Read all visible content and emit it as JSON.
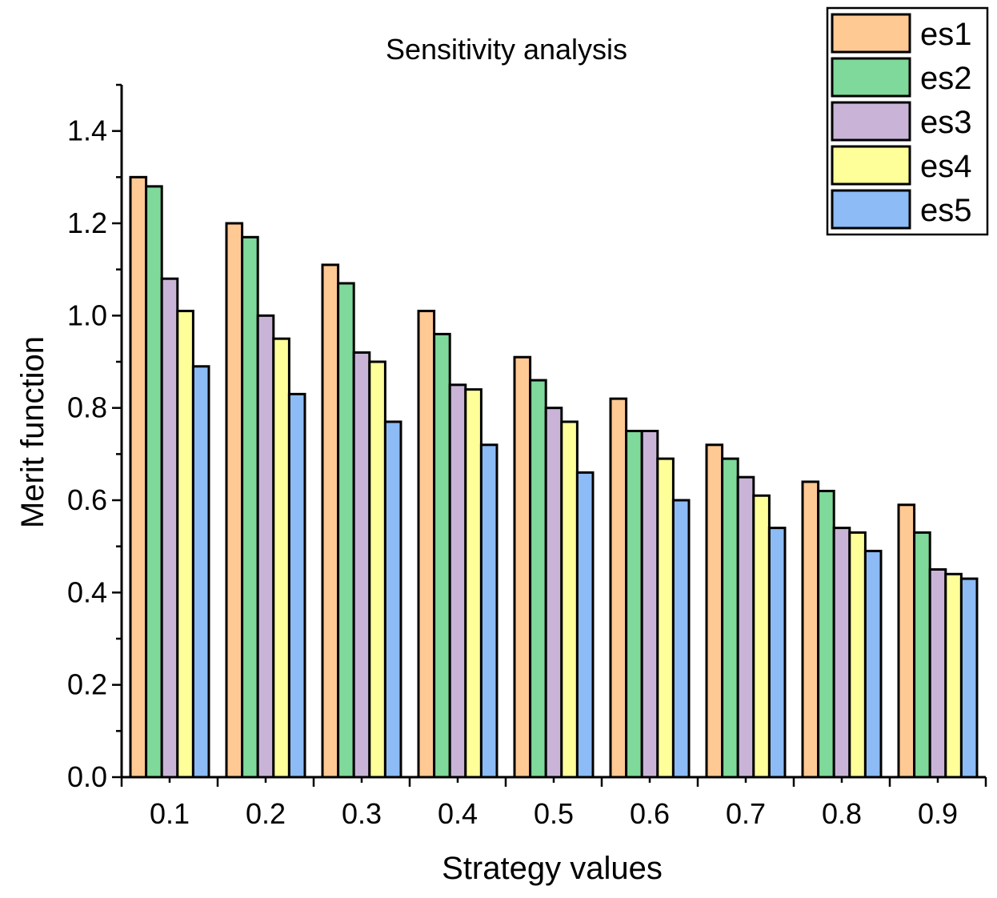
{
  "chart_data": {
    "type": "bar",
    "title": "Sensitivity analysis",
    "xlabel": "Strategy values",
    "ylabel": "Merit function",
    "categories": [
      "0.1",
      "0.2",
      "0.3",
      "0.4",
      "0.5",
      "0.6",
      "0.7",
      "0.8",
      "0.9"
    ],
    "ylim": [
      0,
      1.5
    ],
    "yticks": [
      "0.0",
      "0.2",
      "0.4",
      "0.6",
      "0.8",
      "1.0",
      "1.2",
      "1.4"
    ],
    "grid": false,
    "legend_position": "top-right",
    "series": [
      {
        "name": "es1",
        "color": "#FFC994",
        "values": [
          1.3,
          1.2,
          1.11,
          1.01,
          0.91,
          0.82,
          0.72,
          0.64,
          0.59
        ]
      },
      {
        "name": "es2",
        "color": "#7FD99A",
        "values": [
          1.28,
          1.17,
          1.07,
          0.96,
          0.86,
          0.75,
          0.69,
          0.62,
          0.53
        ]
      },
      {
        "name": "es3",
        "color": "#C9B4D8",
        "values": [
          1.08,
          1.0,
          0.92,
          0.85,
          0.8,
          0.75,
          0.65,
          0.54,
          0.45
        ]
      },
      {
        "name": "es4",
        "color": "#FFFF99",
        "values": [
          1.01,
          0.95,
          0.9,
          0.84,
          0.77,
          0.69,
          0.61,
          0.53,
          0.44
        ]
      },
      {
        "name": "es5",
        "color": "#8CBBF5",
        "values": [
          0.89,
          0.83,
          0.77,
          0.72,
          0.66,
          0.6,
          0.54,
          0.49,
          0.43
        ]
      }
    ]
  }
}
